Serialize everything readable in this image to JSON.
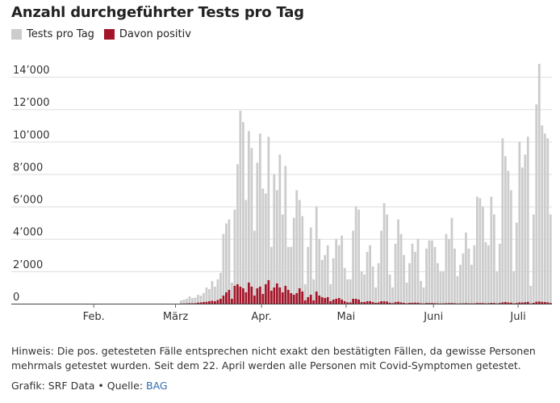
{
  "chart_data": {
    "type": "bar",
    "title": "Anzahl durchgeführter Tests pro Tag",
    "legend": [
      {
        "name": "Tests pro Tag",
        "color": "#cccccc"
      },
      {
        "name": "Davon positiv",
        "color": "#a3162a"
      }
    ],
    "y_ticks": [
      0,
      2000,
      4000,
      6000,
      8000,
      10000,
      12000,
      14000
    ],
    "y_tick_labels": [
      "0",
      "2’000",
      "4’000",
      "6’000",
      "8’000",
      "10’000",
      "12’000",
      "14’000"
    ],
    "ylim": [
      0,
      15000
    ],
    "x_month_labels": [
      {
        "label": "Feb.",
        "day": 15.5
      },
      {
        "label": "März",
        "day": 44.5
      },
      {
        "label": "Apr.",
        "day": 75
      },
      {
        "label": "Mai",
        "day": 105
      },
      {
        "label": "Juni",
        "day": 136
      },
      {
        "label": "Juli",
        "day": 166
      }
    ],
    "start_day": 0,
    "series": [
      {
        "name": "Tests pro Tag",
        "color": "#cccccc",
        "values": [
          0,
          0,
          0,
          0,
          0,
          0,
          0,
          0,
          0,
          0,
          0,
          0,
          0,
          0,
          0,
          0,
          0,
          0,
          0,
          0,
          0,
          0,
          0,
          0,
          0,
          0,
          0,
          0,
          0,
          0,
          0,
          0,
          0,
          0,
          0,
          0,
          0,
          0,
          0,
          0,
          0,
          0,
          0,
          0,
          0,
          0,
          200,
          250,
          300,
          450,
          350,
          380,
          550,
          500,
          650,
          1000,
          900,
          1400,
          1050,
          1500,
          1900,
          4300,
          4950,
          5200,
          1300,
          5800,
          8600,
          11900,
          11200,
          6400,
          10650,
          9600,
          4500,
          8700,
          10500,
          7100,
          6800,
          10300,
          3500,
          8000,
          7000,
          9200,
          5500,
          8500,
          3500,
          3500,
          5300,
          7000,
          6400,
          5400,
          1200,
          3500,
          4700,
          1500,
          6000,
          4000,
          2700,
          3000,
          3600,
          1200,
          2800,
          4000,
          3600,
          4200,
          2200,
          1500,
          1500,
          4500,
          6000,
          5800,
          2000,
          1800,
          3200,
          3600,
          2300,
          1000,
          2500,
          4500,
          6200,
          5500,
          1800,
          1000,
          3700,
          5200,
          4300,
          3000,
          1300,
          2500,
          3700,
          3200,
          4000,
          1400,
          1000,
          3400,
          3900,
          3900,
          3500,
          2500,
          2000,
          2000,
          4300,
          4000,
          5300,
          3400,
          1700,
          2400,
          3100,
          4400,
          3400,
          2400,
          3600,
          6600,
          6500,
          6000,
          3800,
          3600,
          6600,
          5500,
          2000,
          3700,
          10200,
          9100,
          8200,
          7000,
          2000,
          5000,
          10000,
          8400,
          9200,
          10300,
          1100,
          5500,
          12300,
          14800,
          11000,
          10500,
          10200,
          5500
        ]
      },
      {
        "name": "Davon positiv",
        "color": "#a3162a",
        "values": [
          0,
          0,
          0,
          0,
          0,
          0,
          0,
          0,
          0,
          0,
          0,
          0,
          0,
          0,
          0,
          0,
          0,
          0,
          0,
          0,
          0,
          0,
          0,
          0,
          0,
          0,
          0,
          0,
          0,
          0,
          0,
          0,
          0,
          0,
          0,
          0,
          0,
          0,
          0,
          0,
          0,
          0,
          0,
          0,
          0,
          0,
          5,
          10,
          15,
          25,
          20,
          30,
          60,
          80,
          100,
          120,
          150,
          180,
          150,
          230,
          300,
          500,
          700,
          850,
          300,
          1100,
          1200,
          1050,
          950,
          700,
          1300,
          1050,
          500,
          950,
          1050,
          600,
          1200,
          1450,
          800,
          1000,
          1250,
          1000,
          700,
          1100,
          850,
          650,
          550,
          650,
          950,
          750,
          200,
          400,
          550,
          200,
          750,
          500,
          400,
          350,
          400,
          150,
          250,
          300,
          350,
          250,
          150,
          80,
          80,
          300,
          300,
          250,
          100,
          100,
          150,
          150,
          100,
          50,
          80,
          150,
          150,
          130,
          60,
          30,
          100,
          120,
          80,
          50,
          20,
          50,
          60,
          60,
          60,
          20,
          15,
          40,
          40,
          40,
          30,
          20,
          15,
          15,
          30,
          30,
          40,
          25,
          10,
          15,
          20,
          30,
          20,
          15,
          20,
          40,
          40,
          35,
          20,
          25,
          50,
          40,
          15,
          40,
          80,
          100,
          70,
          60,
          15,
          40,
          80,
          70,
          90,
          110,
          10,
          50,
          120,
          130,
          110,
          100,
          80,
          40
        ]
      }
    ]
  }
}
